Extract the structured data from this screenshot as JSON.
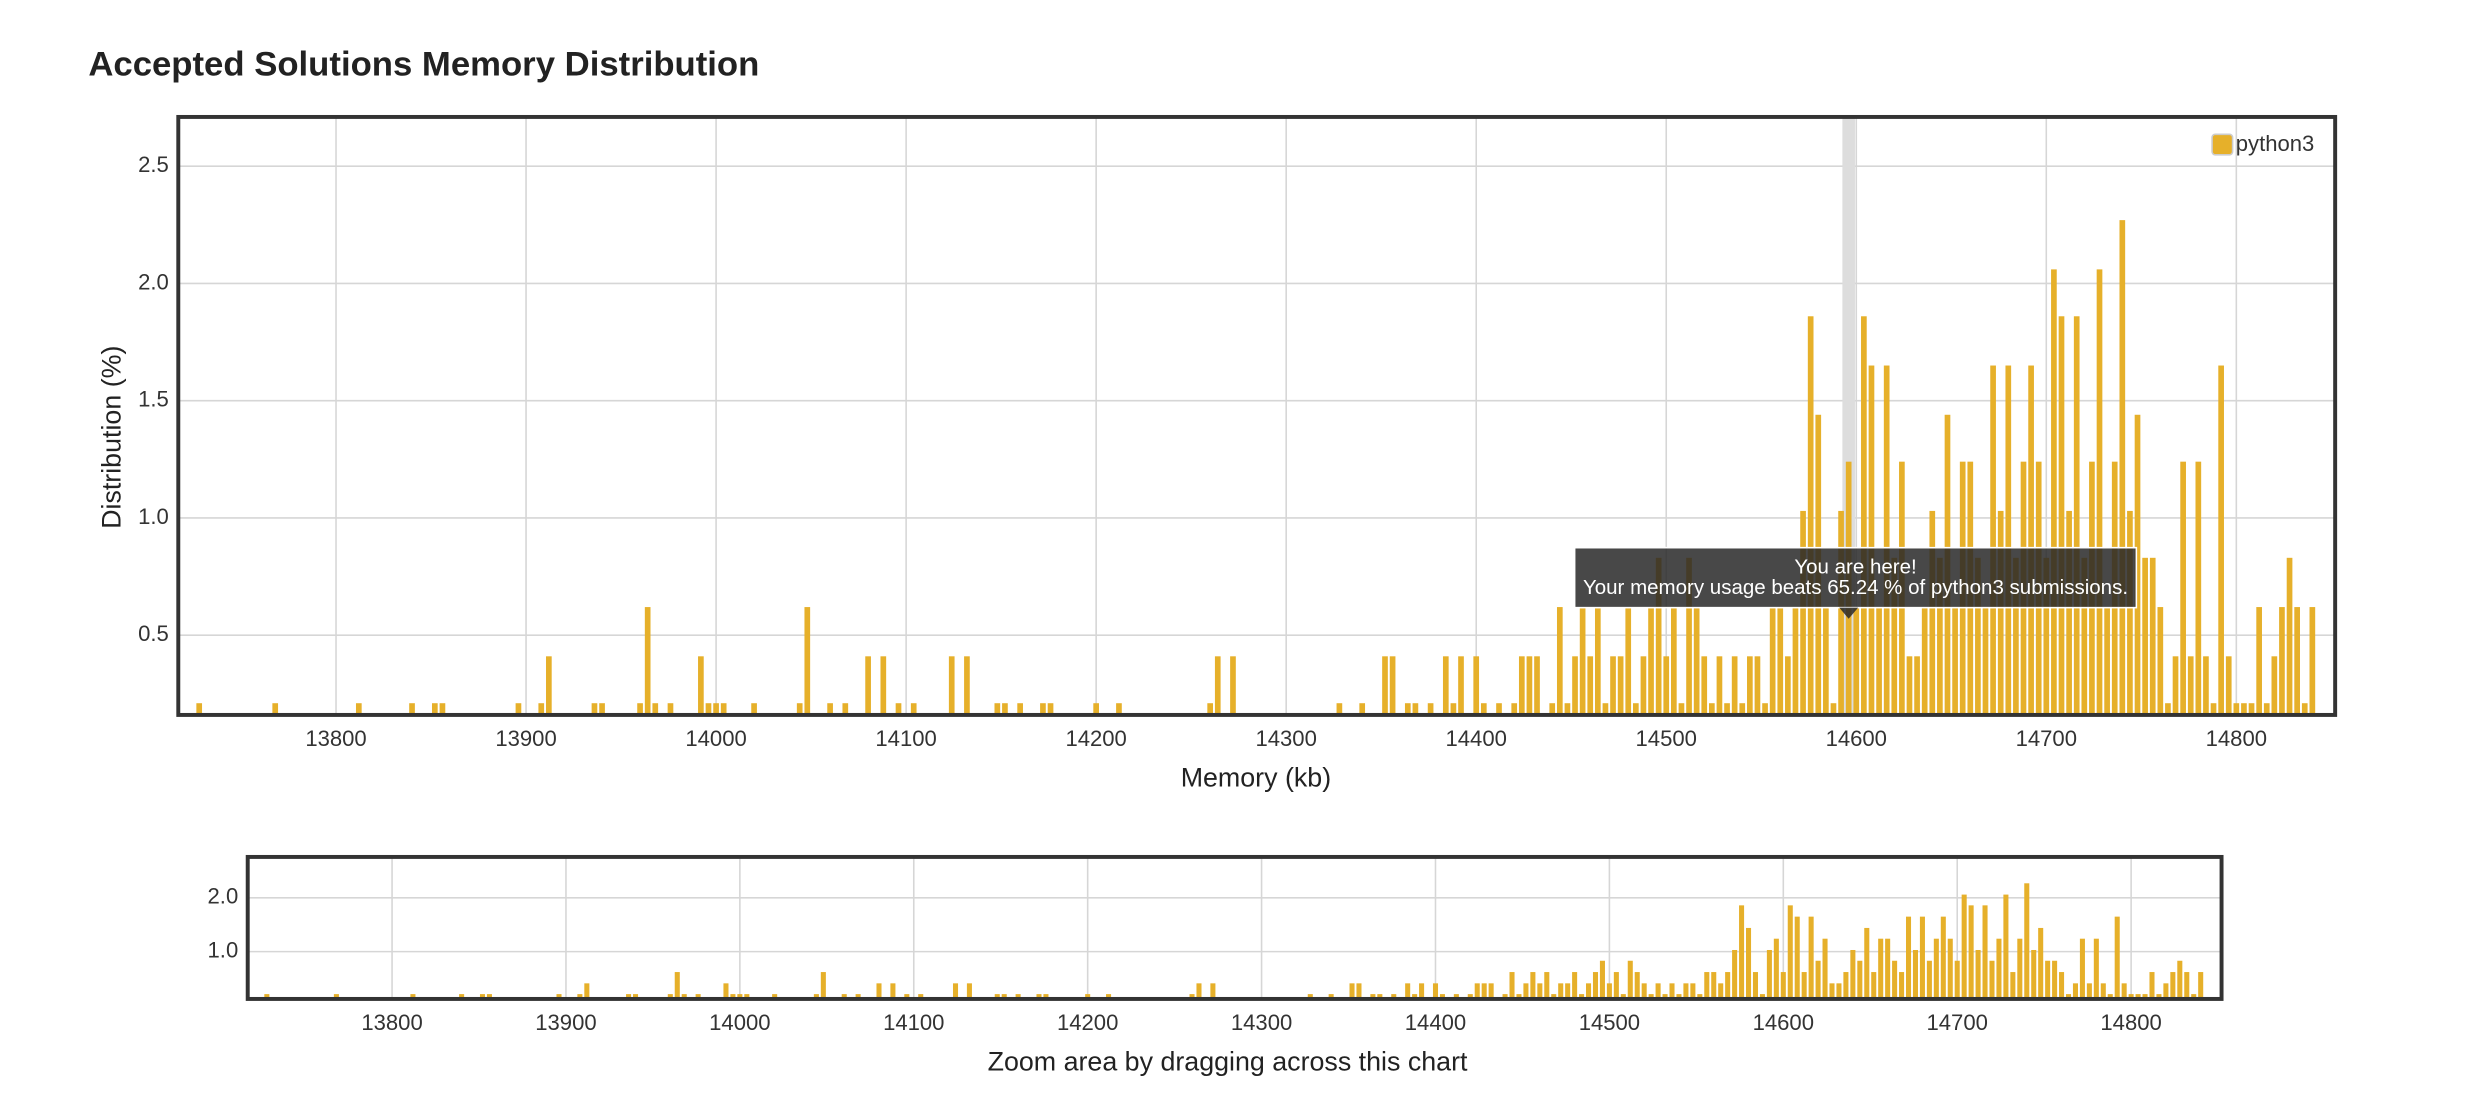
{
  "chart_data": {
    "type": "bar",
    "title": "Accepted Solutions Memory Distribution",
    "x_label": "Memory (kb)",
    "y_label": "Distribution (%)",
    "x": [
      13728,
      13768,
      13812,
      13840,
      13852,
      13856,
      13896,
      13908,
      13912,
      13936,
      13940,
      13960,
      13964,
      13968,
      13976,
      13992,
      13996,
      14000,
      14004,
      14020,
      14044,
      14048,
      14060,
      14068,
      14080,
      14088,
      14096,
      14104,
      14124,
      14132,
      14148,
      14152,
      14160,
      14172,
      14176,
      14200,
      14212,
      14260,
      14264,
      14272,
      14328,
      14340,
      14352,
      14356,
      14364,
      14368,
      14376,
      14384,
      14388,
      14392,
      14400,
      14404,
      14412,
      14420,
      14424,
      14428,
      14432,
      14440,
      14444,
      14448,
      14452,
      14456,
      14460,
      14464,
      14468,
      14472,
      14476,
      14480,
      14484,
      14488,
      14492,
      14496,
      14500,
      14504,
      14508,
      14512,
      14516,
      14520,
      14524,
      14528,
      14532,
      14536,
      14540,
      14544,
      14548,
      14552,
      14556,
      14560,
      14564,
      14568,
      14572,
      14576,
      14580,
      14584,
      14588,
      14592,
      14596,
      14600,
      14604,
      14608,
      14612,
      14616,
      14620,
      14624,
      14628,
      14632,
      14636,
      14640,
      14644,
      14648,
      14652,
      14656,
      14660,
      14664,
      14668,
      14672,
      14676,
      14680,
      14684,
      14688,
      14692,
      14696,
      14700,
      14704,
      14708,
      14712,
      14716,
      14720,
      14724,
      14728,
      14732,
      14736,
      14740,
      14744,
      14748,
      14752,
      14756,
      14760,
      14764,
      14768,
      14772,
      14776,
      14780,
      14784,
      14788,
      14792,
      14796,
      14800,
      14804,
      14808,
      14812,
      14816,
      14820,
      14824,
      14828,
      14832,
      14836,
      14840
    ],
    "series": [
      {
        "name": "python3",
        "color": "#e6b02a",
        "values": [
          0.21,
          0.21,
          0.21,
          0.21,
          0.21,
          0.21,
          0.21,
          0.21,
          0.41,
          0.21,
          0.21,
          0.21,
          0.62,
          0.21,
          0.21,
          0.41,
          0.21,
          0.21,
          0.21,
          0.21,
          0.21,
          0.62,
          0.21,
          0.21,
          0.41,
          0.41,
          0.21,
          0.21,
          0.41,
          0.41,
          0.21,
          0.21,
          0.21,
          0.21,
          0.21,
          0.21,
          0.21,
          0.21,
          0.41,
          0.41,
          0.21,
          0.21,
          0.41,
          0.41,
          0.21,
          0.21,
          0.21,
          0.41,
          0.21,
          0.41,
          0.41,
          0.21,
          0.21,
          0.21,
          0.41,
          0.41,
          0.41,
          0.21,
          0.62,
          0.21,
          0.41,
          0.62,
          0.41,
          0.62,
          0.21,
          0.41,
          0.41,
          0.62,
          0.21,
          0.41,
          0.62,
          0.83,
          0.41,
          0.62,
          0.21,
          0.83,
          0.62,
          0.41,
          0.21,
          0.41,
          0.21,
          0.41,
          0.21,
          0.41,
          0.41,
          0.21,
          0.62,
          0.62,
          0.41,
          0.62,
          1.03,
          1.86,
          1.44,
          0.62,
          0.21,
          1.03,
          1.24,
          0.62,
          1.86,
          1.65,
          0.62,
          1.65,
          0.83,
          1.24,
          0.41,
          0.41,
          0.62,
          1.03,
          0.83,
          1.44,
          0.62,
          1.24,
          1.24,
          0.83,
          0.62,
          1.65,
          1.03,
          1.65,
          0.83,
          1.24,
          1.65,
          1.24,
          0.83,
          2.06,
          1.86,
          1.03,
          1.86,
          0.83,
          1.24,
          2.06,
          0.62,
          1.24,
          2.27,
          1.03,
          1.44,
          0.83,
          0.83,
          0.62,
          0.21,
          0.41,
          1.24,
          0.41,
          1.24,
          0.41,
          0.21,
          1.65,
          0.41,
          0.21,
          0.21,
          0.21,
          0.62,
          0.21,
          0.41,
          0.62,
          0.83,
          0.62,
          0.21,
          0.62
        ]
      }
    ],
    "xlim": [
      13717,
      14852
    ],
    "ylim": [
      0.16,
      2.71
    ],
    "xticks": [
      13800,
      13900,
      14000,
      14100,
      14200,
      14300,
      14400,
      14500,
      14600,
      14700,
      14800
    ],
    "yticks": [
      0.5,
      {
        "value": 1,
        "label": "1.0"
      },
      1.5,
      {
        "value": 2,
        "label": "2.0"
      },
      2.5
    ],
    "grid": true,
    "legend": "top-right",
    "annotation": {
      "title": "You are here!",
      "text": "Your memory usage beats 65.24 % of python3 submissions.",
      "x": 14596
    },
    "navigator": {
      "label": "Zoom area by dragging across this chart",
      "ylim": [
        0.12,
        2.76
      ],
      "yticks": [
        {
          "value": 1,
          "label": "1.0"
        },
        {
          "value": 2,
          "label": "2.0"
        }
      ]
    }
  }
}
